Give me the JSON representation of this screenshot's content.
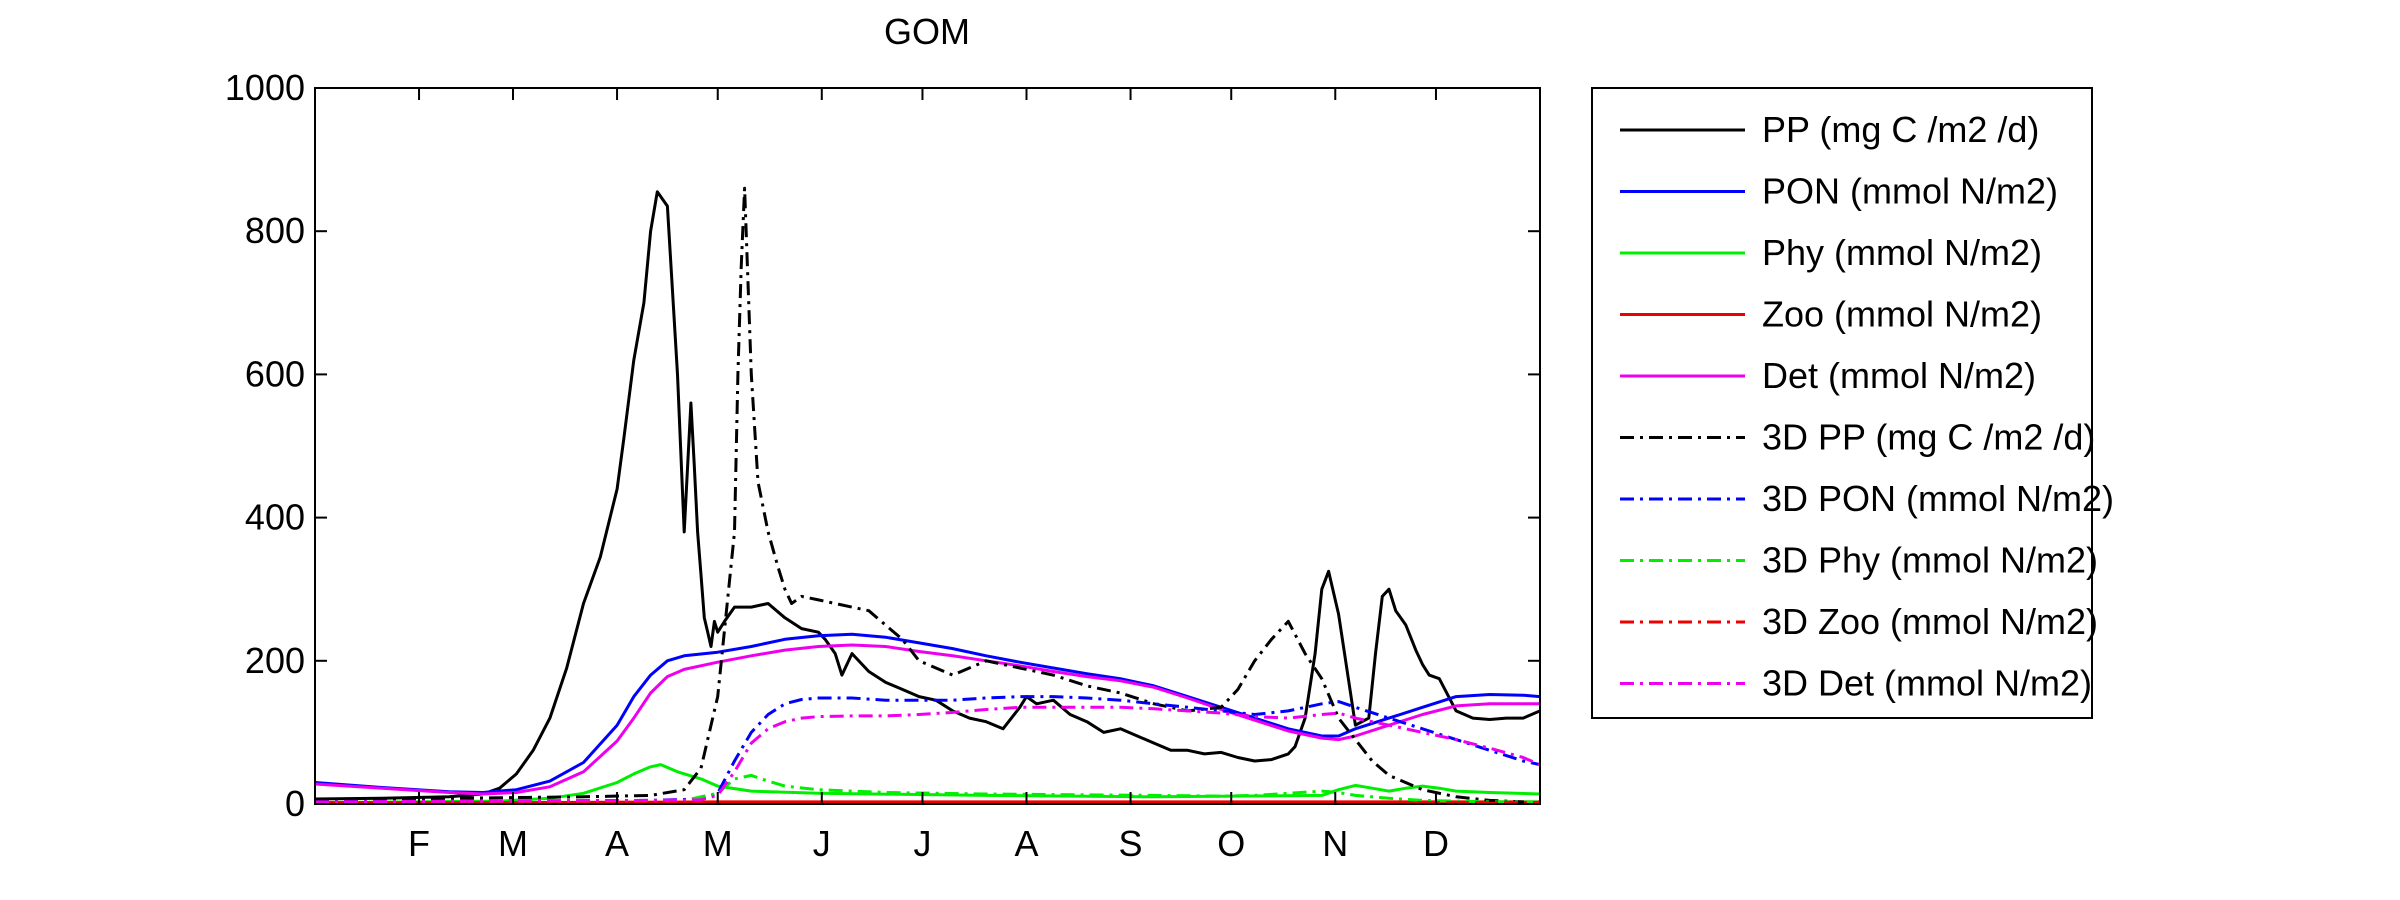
{
  "chart_data": {
    "type": "line",
    "title": "GOM",
    "xlabel": "",
    "ylabel": "",
    "xlim": [
      0,
      365
    ],
    "ylim": [
      0,
      1000
    ],
    "yticks": [
      0,
      200,
      400,
      600,
      800,
      1000
    ],
    "ytick_labels": [
      "0",
      "200",
      "400",
      "600",
      "800",
      "1000"
    ],
    "xtick_labels": [
      "F",
      "M",
      "A",
      "M",
      "J",
      "J",
      "A",
      "S",
      "O",
      "N",
      "D"
    ],
    "xtick_positions": [
      31,
      59,
      90,
      120,
      151,
      181,
      212,
      243,
      273,
      304,
      334
    ],
    "grid": false,
    "legend_position": "outside-right",
    "series": [
      {
        "name": "PP (mg C /m2 /d)",
        "color": "#000000",
        "dash": "solid",
        "x": [
          0,
          20,
          40,
          50,
          55,
          60,
          65,
          70,
          75,
          80,
          85,
          90,
          92,
          95,
          98,
          100,
          102,
          105,
          108,
          110,
          112,
          113,
          114,
          115,
          116,
          117,
          118,
          119,
          120,
          122,
          125,
          130,
          135,
          140,
          145,
          150,
          152,
          155,
          157,
          160,
          165,
          170,
          175,
          180,
          185,
          190,
          195,
          200,
          205,
          210,
          212,
          215,
          220,
          225,
          230,
          235,
          240,
          245,
          250,
          255,
          260,
          265,
          270,
          275,
          280,
          285,
          290,
          292,
          295,
          298,
          300,
          302,
          305,
          310,
          314,
          316,
          318,
          320,
          322,
          325,
          328,
          330,
          332,
          335,
          340,
          345,
          350,
          355,
          360,
          365
        ],
        "y": [
          7,
          8,
          10,
          14,
          22,
          42,
          75,
          120,
          190,
          280,
          345,
          440,
          510,
          620,
          700,
          800,
          855,
          835,
          600,
          380,
          560,
          475,
          380,
          320,
          260,
          240,
          220,
          255,
          240,
          255,
          275,
          275,
          280,
          260,
          245,
          240,
          230,
          210,
          180,
          210,
          185,
          170,
          160,
          150,
          145,
          130,
          120,
          115,
          105,
          135,
          150,
          140,
          145,
          125,
          115,
          100,
          105,
          95,
          85,
          75,
          75,
          70,
          72,
          65,
          60,
          62,
          70,
          80,
          120,
          210,
          300,
          325,
          265,
          110,
          120,
          210,
          290,
          300,
          270,
          250,
          215,
          195,
          180,
          175,
          130,
          120,
          118,
          120,
          120,
          130
        ]
      },
      {
        "name": "PON (mmol N/m2)",
        "color": "#0000ff",
        "dash": "solid",
        "x": [
          0,
          20,
          40,
          50,
          60,
          70,
          80,
          90,
          95,
          100,
          105,
          110,
          120,
          130,
          140,
          150,
          160,
          170,
          180,
          190,
          200,
          210,
          220,
          230,
          240,
          250,
          260,
          270,
          280,
          290,
          300,
          305,
          310,
          320,
          330,
          340,
          350,
          360,
          365
        ],
        "y": [
          30,
          23,
          17,
          16,
          20,
          32,
          58,
          110,
          150,
          180,
          200,
          207,
          212,
          220,
          230,
          235,
          237,
          233,
          225,
          217,
          207,
          198,
          190,
          182,
          175,
          165,
          150,
          135,
          120,
          105,
          95,
          95,
          105,
          120,
          135,
          150,
          153,
          152,
          150
        ]
      },
      {
        "name": "Phy (mmol N/m2)",
        "color": "#00ee00",
        "dash": "solid",
        "x": [
          0,
          30,
          55,
          70,
          80,
          90,
          95,
          100,
          103,
          108,
          115,
          120,
          130,
          150,
          200,
          250,
          300,
          305,
          310,
          315,
          320,
          325,
          330,
          335,
          340,
          350,
          365
        ],
        "y": [
          2,
          3,
          4,
          8,
          15,
          30,
          42,
          52,
          55,
          45,
          35,
          25,
          18,
          15,
          12,
          10,
          12,
          20,
          26,
          22,
          18,
          22,
          25,
          22,
          18,
          16,
          14
        ]
      },
      {
        "name": "Zoo (mmol N/m2)",
        "color": "#ee0000",
        "dash": "solid",
        "x": [
          0,
          60,
          120,
          200,
          300,
          365
        ],
        "y": [
          2,
          2,
          3,
          3,
          3,
          3
        ]
      },
      {
        "name": "Det (mmol N/m2)",
        "color": "#ee00ee",
        "dash": "solid",
        "x": [
          0,
          20,
          40,
          50,
          60,
          70,
          80,
          90,
          95,
          100,
          105,
          110,
          120,
          130,
          140,
          150,
          160,
          170,
          180,
          190,
          200,
          210,
          220,
          230,
          240,
          250,
          260,
          270,
          280,
          290,
          300,
          305,
          310,
          320,
          330,
          340,
          350,
          360,
          365
        ],
        "y": [
          28,
          22,
          16,
          14,
          16,
          24,
          45,
          88,
          120,
          155,
          178,
          188,
          198,
          207,
          215,
          220,
          222,
          220,
          213,
          207,
          200,
          193,
          185,
          178,
          172,
          163,
          148,
          132,
          117,
          102,
          92,
          90,
          95,
          110,
          125,
          137,
          140,
          140,
          140
        ]
      },
      {
        "name": "3D PP (mg C /m2 /d)",
        "color": "#000000",
        "dash": "dashdot",
        "x": [
          0,
          40,
          80,
          100,
          110,
          115,
          120,
          125,
          126,
          127,
          128,
          130,
          132,
          135,
          138,
          140,
          142,
          145,
          150,
          155,
          160,
          165,
          170,
          175,
          180,
          190,
          200,
          210,
          220,
          230,
          240,
          250,
          260,
          270,
          275,
          280,
          285,
          290,
          295,
          300,
          305,
          310,
          315,
          320,
          330,
          340,
          350,
          360,
          365
        ],
        "y": [
          6,
          8,
          10,
          12,
          20,
          50,
          150,
          380,
          600,
          750,
          860,
          600,
          450,
          380,
          330,
          300,
          280,
          290,
          285,
          280,
          275,
          270,
          250,
          230,
          200,
          180,
          200,
          190,
          180,
          165,
          155,
          140,
          130,
          135,
          160,
          200,
          230,
          255,
          210,
          175,
          120,
          90,
          60,
          40,
          20,
          10,
          5,
          3,
          2
        ]
      },
      {
        "name": "3D PON (mmol N/m2)",
        "color": "#0000ff",
        "dash": "dashdot",
        "x": [
          0,
          50,
          100,
          115,
          120,
          125,
          130,
          135,
          140,
          145,
          150,
          160,
          170,
          180,
          190,
          200,
          210,
          220,
          230,
          240,
          250,
          260,
          270,
          280,
          290,
          300,
          305,
          310,
          320,
          330,
          340,
          350,
          360,
          365
        ],
        "y": [
          3,
          4,
          5,
          7,
          15,
          60,
          100,
          125,
          140,
          146,
          148,
          148,
          145,
          145,
          145,
          148,
          150,
          150,
          148,
          145,
          140,
          135,
          130,
          125,
          130,
          140,
          143,
          135,
          120,
          105,
          90,
          75,
          60,
          55
        ]
      },
      {
        "name": "3D Phy (mmol N/m2)",
        "color": "#00ee00",
        "dash": "dashdot",
        "x": [
          0,
          80,
          110,
          120,
          125,
          130,
          135,
          140,
          150,
          170,
          200,
          250,
          270,
          280,
          290,
          300,
          305,
          310,
          320,
          330,
          340,
          350,
          365
        ],
        "y": [
          1,
          2,
          5,
          15,
          35,
          40,
          32,
          25,
          20,
          16,
          14,
          12,
          11,
          12,
          15,
          18,
          16,
          12,
          8,
          5,
          4,
          3,
          3
        ]
      },
      {
        "name": "3D Zoo (mmol N/m2)",
        "color": "#ee0000",
        "dash": "dashdot",
        "x": [
          0,
          120,
          200,
          300,
          365
        ],
        "y": [
          1,
          2,
          2,
          2,
          2
        ]
      },
      {
        "name": "3D Det (mmol N/m2)",
        "color": "#ee00ee",
        "dash": "dashdot",
        "x": [
          0,
          50,
          100,
          115,
          120,
          125,
          130,
          135,
          140,
          145,
          150,
          160,
          170,
          180,
          190,
          200,
          210,
          220,
          230,
          240,
          250,
          260,
          270,
          280,
          290,
          300,
          305,
          310,
          320,
          330,
          340,
          350,
          360,
          365
        ],
        "y": [
          3,
          4,
          5,
          6,
          12,
          45,
          85,
          105,
          115,
          120,
          122,
          123,
          123,
          125,
          128,
          132,
          135,
          135,
          135,
          135,
          133,
          130,
          127,
          122,
          120,
          125,
          127,
          120,
          110,
          100,
          90,
          78,
          65,
          55
        ]
      }
    ]
  }
}
